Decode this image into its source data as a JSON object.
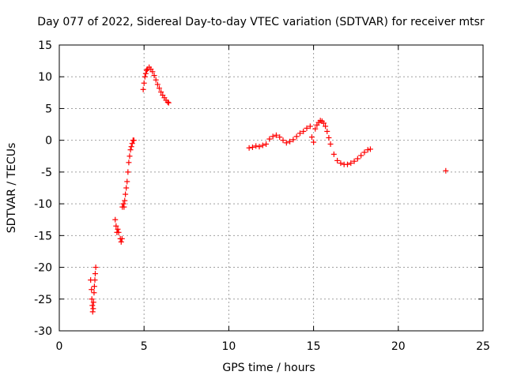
{
  "chart_data": {
    "type": "scatter",
    "title": "Day 077 of 2022, Sidereal Day-to-day VTEC variation (SDTVAR) for receiver mtsr",
    "xlabel": "GPS time / hours",
    "ylabel": "SDTVAR / TECUs",
    "xlim": [
      0,
      25
    ],
    "ylim": [
      -30,
      15
    ],
    "xticks": [
      0,
      5,
      10,
      15,
      20,
      25
    ],
    "yticks": [
      15,
      10,
      5,
      0,
      -5,
      -10,
      -15,
      -20,
      -25,
      -30
    ],
    "grid": true,
    "marker": "+",
    "color": "#ff0000",
    "series": [
      {
        "name": "SDTVAR",
        "x": [
          1.85,
          1.9,
          1.92,
          1.95,
          1.97,
          2.0,
          2.02,
          2.05,
          2.07,
          2.1,
          2.12,
          2.15,
          3.3,
          3.35,
          3.4,
          3.45,
          3.5,
          3.6,
          3.65,
          3.7,
          3.72,
          3.78,
          3.82,
          3.86,
          3.9,
          3.95,
          4.0,
          4.05,
          4.1,
          4.15,
          4.2,
          4.25,
          4.3,
          4.35,
          4.4,
          4.95,
          5.0,
          5.05,
          5.1,
          5.15,
          5.2,
          5.3,
          5.4,
          5.5,
          5.6,
          5.7,
          5.8,
          5.9,
          6.0,
          6.1,
          6.2,
          6.3,
          6.4,
          6.45,
          11.2,
          11.4,
          11.6,
          11.8,
          12.0,
          12.2,
          12.4,
          12.6,
          12.8,
          13.0,
          13.2,
          13.4,
          13.6,
          13.8,
          14.0,
          14.2,
          14.4,
          14.6,
          14.8,
          14.9,
          15.0,
          15.1,
          15.2,
          15.3,
          15.4,
          15.5,
          15.6,
          15.7,
          15.8,
          15.9,
          16.0,
          16.2,
          16.4,
          16.6,
          16.8,
          17.0,
          17.2,
          17.4,
          17.6,
          17.8,
          18.0,
          18.2,
          18.35,
          22.8
        ],
        "y": [
          -22,
          -23.5,
          -25,
          -26,
          -27,
          -26.5,
          -25.5,
          -24,
          -23,
          -22,
          -21,
          -20,
          -12.5,
          -13.5,
          -14.5,
          -14,
          -14.5,
          -15.5,
          -16,
          -15.5,
          -10.5,
          -10,
          -10.5,
          -9.5,
          -8.5,
          -7.5,
          -6.5,
          -5,
          -3.5,
          -2.5,
          -1.5,
          -1,
          -0.5,
          0,
          0,
          8,
          9,
          10,
          10.5,
          11,
          11.2,
          11.5,
          11.2,
          10.8,
          10.2,
          9.5,
          8.8,
          8.2,
          7.6,
          7.1,
          6.7,
          6.3,
          6,
          5.9,
          -1.2,
          -1.1,
          -0.9,
          -1,
          -0.8,
          -0.6,
          0.2,
          0.6,
          0.8,
          0.5,
          0,
          -0.4,
          -0.2,
          0.1,
          0.6,
          1.1,
          1.4,
          1.9,
          2.2,
          0.5,
          -0.3,
          1.8,
          2.4,
          2.8,
          3.1,
          3.0,
          2.7,
          2.2,
          1.4,
          0.4,
          -0.6,
          -2.2,
          -3.2,
          -3.6,
          -3.8,
          -3.8,
          -3.6,
          -3.3,
          -2.9,
          -2.4,
          -1.9,
          -1.5,
          -1.4,
          -4.8
        ]
      }
    ]
  }
}
